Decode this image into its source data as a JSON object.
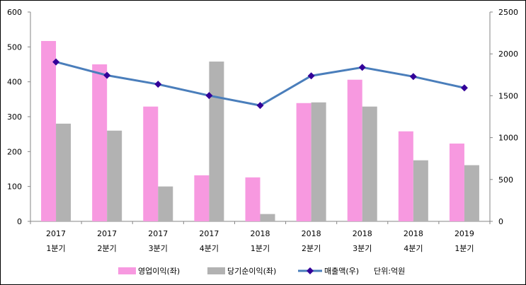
{
  "chart_data": {
    "type": "bar",
    "title": "",
    "categories": [
      [
        "2017",
        "1분기"
      ],
      [
        "2017",
        "2분기"
      ],
      [
        "2017",
        "3분기"
      ],
      [
        "2017",
        "4분기"
      ],
      [
        "2018",
        "1분기"
      ],
      [
        "2018",
        "2분기"
      ],
      [
        "2018",
        "3분기"
      ],
      [
        "2018",
        "4분기"
      ],
      [
        "2019",
        "1분기"
      ]
    ],
    "series": [
      {
        "name": "영업이익(좌)",
        "type": "bar",
        "axis": "left",
        "color": "#f799e0",
        "values": [
          517,
          450,
          329,
          132,
          126,
          339,
          406,
          258,
          223
        ]
      },
      {
        "name": "당기순이익(좌)",
        "type": "bar",
        "axis": "left",
        "color": "#b2b2b2",
        "values": [
          280,
          260,
          100,
          458,
          21,
          341,
          329,
          175,
          161
        ]
      },
      {
        "name": "매출액(우)",
        "type": "line",
        "axis": "right",
        "color": "#4a7ebb",
        "marker_color": "#330099",
        "values": [
          1904,
          1744,
          1637,
          1502,
          1384,
          1738,
          1839,
          1729,
          1594
        ]
      }
    ],
    "unit_note": "단위:억원",
    "ylim_left": [
      0,
      600
    ],
    "yticks_left": [
      "0",
      "100",
      "200",
      "300",
      "400",
      "500",
      "600"
    ],
    "ylim_right": [
      0,
      2500
    ],
    "yticks_right": [
      "0",
      "500",
      "1000",
      "1500",
      "2000",
      "2500"
    ],
    "grid": false,
    "legend_position": "bottom"
  }
}
